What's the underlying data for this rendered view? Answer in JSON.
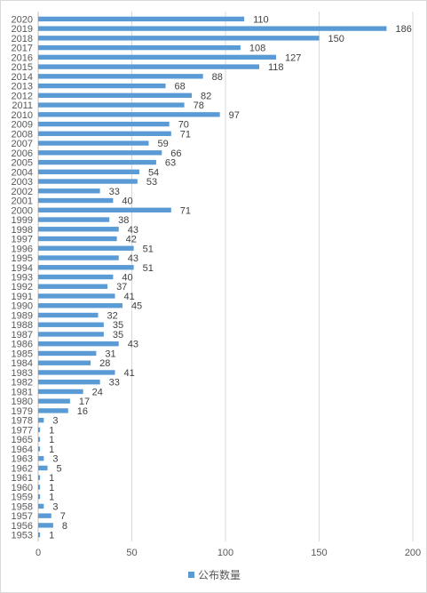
{
  "chart_data": {
    "type": "bar",
    "orientation": "horizontal",
    "categories": [
      "2020",
      "2019",
      "2018",
      "2017",
      "2016",
      "2015",
      "2014",
      "2013",
      "2012",
      "2011",
      "2010",
      "2009",
      "2008",
      "2007",
      "2006",
      "2005",
      "2004",
      "2003",
      "2002",
      "2001",
      "2000",
      "1999",
      "1998",
      "1997",
      "1996",
      "1995",
      "1994",
      "1993",
      "1992",
      "1991",
      "1990",
      "1989",
      "1988",
      "1987",
      "1986",
      "1985",
      "1984",
      "1983",
      "1982",
      "1981",
      "1980",
      "1979",
      "1978",
      "1977",
      "1965",
      "1964",
      "1963",
      "1962",
      "1961",
      "1960",
      "1959",
      "1958",
      "1957",
      "1956",
      "1953"
    ],
    "series": [
      {
        "name": "公布数量",
        "color": "#5b9bd5",
        "values": [
          110,
          186,
          150,
          108,
          127,
          118,
          88,
          68,
          82,
          78,
          97,
          70,
          71,
          59,
          66,
          63,
          54,
          53,
          33,
          40,
          71,
          38,
          43,
          42,
          51,
          43,
          51,
          40,
          37,
          41,
          45,
          32,
          35,
          35,
          43,
          31,
          28,
          41,
          33,
          24,
          17,
          16,
          3,
          1,
          1,
          1,
          3,
          5,
          1,
          1,
          1,
          3,
          7,
          8,
          1
        ]
      }
    ],
    "x_ticks": [
      "0",
      "50",
      "100",
      "150",
      "200"
    ],
    "xlim": [
      0,
      200
    ],
    "grid": "vertical",
    "legend": "bottom",
    "data_labels": true
  }
}
